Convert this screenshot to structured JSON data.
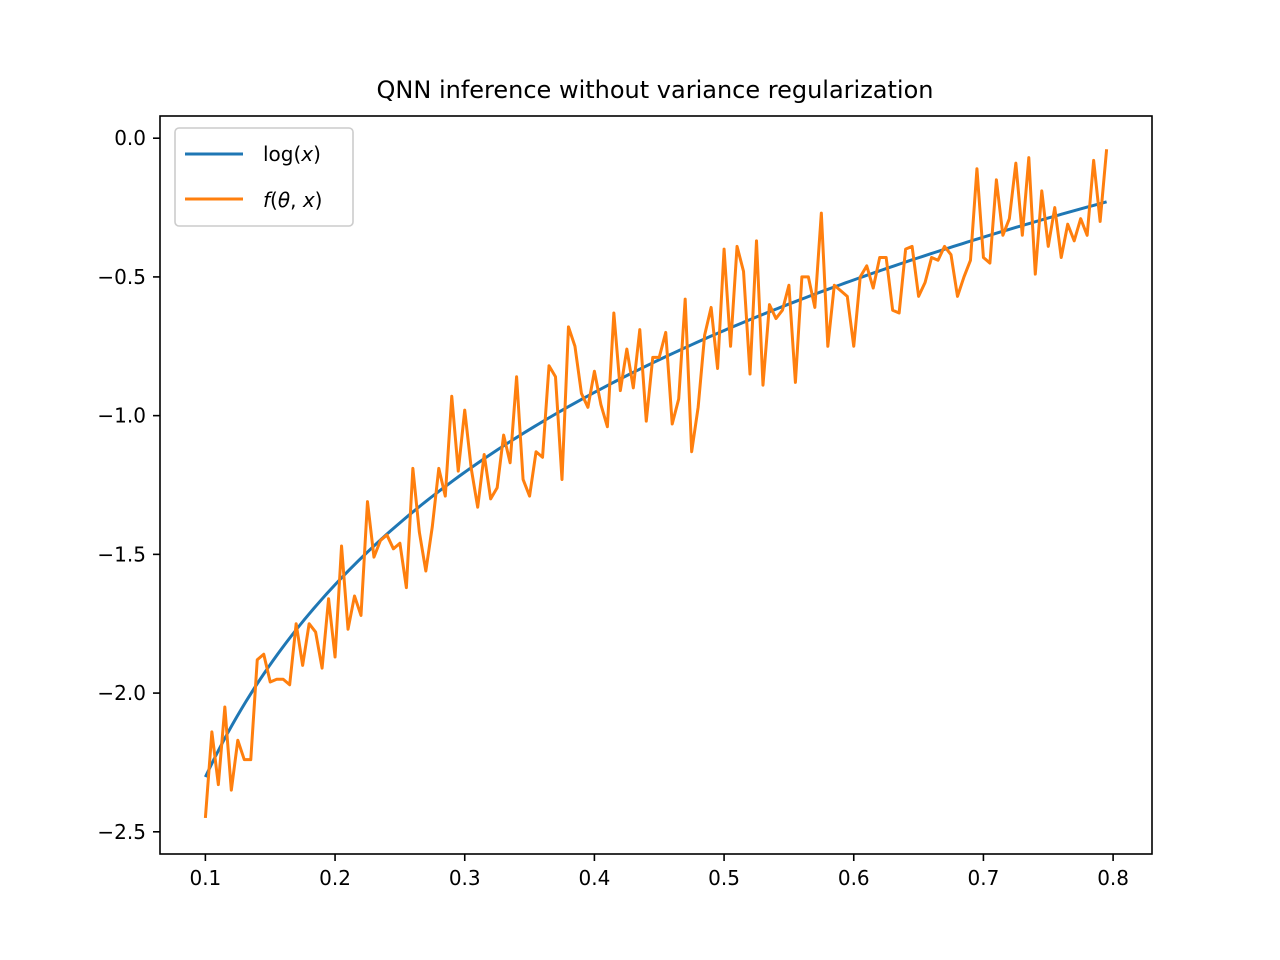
{
  "chart_data": {
    "type": "line",
    "title": "QNN inference without variance regularization",
    "xlabel": "",
    "ylabel": "",
    "xlim": [
      0.065,
      0.83
    ],
    "ylim": [
      -2.58,
      0.08
    ],
    "xticks": [
      0.1,
      0.2,
      0.3,
      0.4,
      0.5,
      0.6,
      0.7,
      0.8
    ],
    "xtick_labels": [
      "0.1",
      "0.2",
      "0.3",
      "0.4",
      "0.5",
      "0.6",
      "0.7",
      "0.8"
    ],
    "yticks": [
      0.0,
      -0.5,
      -1.0,
      -1.5,
      -2.0,
      -2.5
    ],
    "ytick_labels": [
      "0.0",
      "−0.5",
      "−1.0",
      "−1.5",
      "−2.0",
      "−2.5"
    ],
    "grid": false,
    "legend_position": "upper-left",
    "series": [
      {
        "name": "log(x)",
        "legend_plain": "log(",
        "legend_italic": "x",
        "legend_tail": ")",
        "color": "#1f77b4",
        "function": "log",
        "x_start": 0.1,
        "x_end": 0.795
      },
      {
        "name": "f(θ, x)",
        "legend_italic": "f",
        "legend_rest_open": "(",
        "legend_theta": "θ",
        "legend_sep": ", ",
        "legend_x": "x",
        "legend_close": ")",
        "color": "#ff7f0e",
        "x": [
          0.1,
          0.105,
          0.11,
          0.115,
          0.12,
          0.125,
          0.13,
          0.135,
          0.14,
          0.145,
          0.15,
          0.155,
          0.16,
          0.165,
          0.17,
          0.175,
          0.18,
          0.185,
          0.19,
          0.195,
          0.2,
          0.205,
          0.21,
          0.215,
          0.22,
          0.225,
          0.23,
          0.235,
          0.24,
          0.245,
          0.25,
          0.255,
          0.26,
          0.265,
          0.27,
          0.275,
          0.28,
          0.285,
          0.29,
          0.295,
          0.3,
          0.305,
          0.31,
          0.315,
          0.32,
          0.325,
          0.33,
          0.335,
          0.34,
          0.345,
          0.35,
          0.355,
          0.36,
          0.365,
          0.37,
          0.375,
          0.38,
          0.385,
          0.39,
          0.395,
          0.4,
          0.405,
          0.41,
          0.415,
          0.42,
          0.425,
          0.43,
          0.435,
          0.44,
          0.445,
          0.45,
          0.455,
          0.46,
          0.465,
          0.47,
          0.475,
          0.48,
          0.485,
          0.49,
          0.495,
          0.5,
          0.505,
          0.51,
          0.515,
          0.52,
          0.525,
          0.53,
          0.535,
          0.54,
          0.545,
          0.55,
          0.555,
          0.56,
          0.565,
          0.57,
          0.575,
          0.58,
          0.585,
          0.59,
          0.595,
          0.6,
          0.605,
          0.61,
          0.615,
          0.62,
          0.625,
          0.63,
          0.635,
          0.64,
          0.645,
          0.65,
          0.655,
          0.66,
          0.665,
          0.67,
          0.675,
          0.68,
          0.685,
          0.69,
          0.695,
          0.7,
          0.705,
          0.71,
          0.715,
          0.72,
          0.725,
          0.73,
          0.735,
          0.74,
          0.745,
          0.75,
          0.755,
          0.76,
          0.765,
          0.77,
          0.775,
          0.78,
          0.785,
          0.79,
          0.795
        ],
        "values": [
          -2.45,
          -2.14,
          -2.33,
          -2.05,
          -2.35,
          -2.17,
          -2.24,
          -2.24,
          -1.88,
          -1.86,
          -1.96,
          -1.95,
          -1.95,
          -1.97,
          -1.75,
          -1.9,
          -1.75,
          -1.78,
          -1.91,
          -1.66,
          -1.87,
          -1.47,
          -1.77,
          -1.65,
          -1.72,
          -1.31,
          -1.51,
          -1.45,
          -1.43,
          -1.48,
          -1.46,
          -1.62,
          -1.19,
          -1.42,
          -1.56,
          -1.4,
          -1.19,
          -1.29,
          -0.93,
          -1.2,
          -0.98,
          -1.19,
          -1.33,
          -1.14,
          -1.3,
          -1.26,
          -1.07,
          -1.17,
          -0.86,
          -1.23,
          -1.29,
          -1.13,
          -1.15,
          -0.82,
          -0.86,
          -1.23,
          -0.68,
          -0.75,
          -0.92,
          -0.97,
          -0.84,
          -0.96,
          -1.04,
          -0.63,
          -0.91,
          -0.76,
          -0.9,
          -0.69,
          -1.02,
          -0.79,
          -0.79,
          -0.7,
          -1.03,
          -0.94,
          -0.58,
          -1.13,
          -0.97,
          -0.71,
          -0.61,
          -0.83,
          -0.4,
          -0.75,
          -0.39,
          -0.48,
          -0.85,
          -0.37,
          -0.89,
          -0.6,
          -0.65,
          -0.62,
          -0.53,
          -0.88,
          -0.5,
          -0.5,
          -0.61,
          -0.27,
          -0.75,
          -0.53,
          -0.55,
          -0.57,
          -0.75,
          -0.5,
          -0.46,
          -0.54,
          -0.43,
          -0.43,
          -0.62,
          -0.63,
          -0.4,
          -0.39,
          -0.57,
          -0.52,
          -0.43,
          -0.44,
          -0.39,
          -0.42,
          -0.57,
          -0.5,
          -0.44,
          -0.11,
          -0.43,
          -0.45,
          -0.15,
          -0.35,
          -0.29,
          -0.09,
          -0.35,
          -0.07,
          -0.49,
          -0.19,
          -0.39,
          -0.25,
          -0.43,
          -0.31,
          -0.37,
          -0.29,
          -0.35,
          -0.08,
          -0.3,
          -0.04
        ]
      }
    ]
  }
}
